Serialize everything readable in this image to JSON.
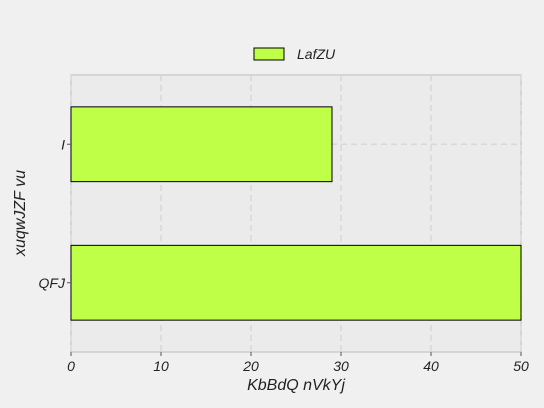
{
  "chart_data": {
    "type": "bar",
    "orientation": "horizontal",
    "categories": [
      "I",
      "QFJ"
    ],
    "series": [
      {
        "name": "LafZU",
        "values": [
          29,
          50
        ],
        "color": "#bfff47"
      }
    ],
    "xlabel": "KbBdQ nVkYj",
    "ylabel": "xuqwJZF vu",
    "xlim": [
      0,
      50
    ],
    "xticks": [
      "0",
      "10",
      "20",
      "30",
      "40",
      "50"
    ],
    "grid": true,
    "legend_position": "top-center",
    "colors": {
      "background": "#f0f0f0",
      "plot_background": "#ebebeb",
      "grid": "#d8d8d8",
      "bar_edge": "#000000"
    }
  }
}
